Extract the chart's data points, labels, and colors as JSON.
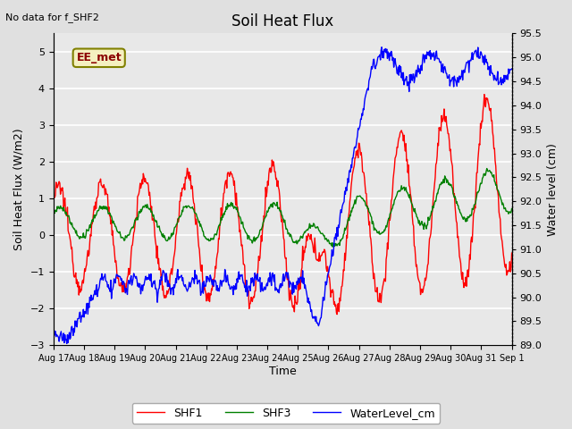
{
  "title": "Soil Heat Flux",
  "no_data_text": "No data for f_SHF2",
  "ylabel_left": "Soil Heat Flux (W/m2)",
  "ylabel_right": "Water level (cm)",
  "xlabel": "Time",
  "ylim_left": [
    -3.0,
    5.5
  ],
  "ylim_right": [
    89.0,
    95.5
  ],
  "yticks_left": [
    -3.0,
    -2.0,
    -1.0,
    0.0,
    1.0,
    2.0,
    3.0,
    4.0,
    5.0
  ],
  "yticks_right": [
    89.0,
    89.5,
    90.0,
    90.5,
    91.0,
    91.5,
    92.0,
    92.5,
    93.0,
    93.5,
    94.0,
    94.5,
    95.0,
    95.5
  ],
  "xtick_labels": [
    "Aug 17",
    "Aug 18",
    "Aug 19",
    "Aug 20",
    "Aug 21",
    "Aug 22",
    "Aug 23",
    "Aug 24",
    "Aug 25",
    "Aug 26",
    "Aug 27",
    "Aug 28",
    "Aug 29",
    "Aug 30",
    "Aug 31",
    "Sep 1"
  ],
  "legend_labels": [
    "SHF1",
    "SHF3",
    "WaterLevel_cm"
  ],
  "legend_colors": [
    "red",
    "green",
    "blue"
  ],
  "station_label": "EE_met",
  "bg_color": "#e0e0e0",
  "plot_bg_color": "#e8e8e8",
  "grid_color": "white",
  "n_days": 15
}
